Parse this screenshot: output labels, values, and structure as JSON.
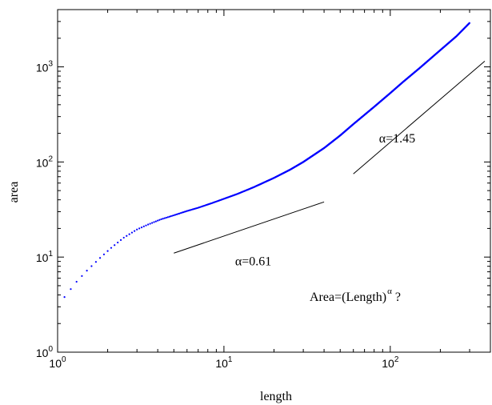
{
  "chart_data": {
    "type": "scatter",
    "xlabel": "length",
    "ylabel": "area",
    "x_scale": "log",
    "y_scale": "log",
    "xlim": [
      1,
      400
    ],
    "ylim": [
      1,
      4000
    ],
    "grid": false,
    "x_ticks": [
      {
        "base": "10",
        "exp": "0",
        "value": 1
      },
      {
        "base": "10",
        "exp": "1",
        "value": 10
      },
      {
        "base": "10",
        "exp": "2",
        "value": 100
      }
    ],
    "y_ticks": [
      {
        "base": "10",
        "exp": "0",
        "value": 1
      },
      {
        "base": "10",
        "exp": "1",
        "value": 10
      },
      {
        "base": "10",
        "exp": "2",
        "value": 100
      },
      {
        "base": "10",
        "exp": "3",
        "value": 1000
      }
    ],
    "series": [
      {
        "color": "#0000ff",
        "x": [
          1.1,
          1.3,
          1.5,
          1.8,
          2.1,
          2.5,
          3.0,
          3.5,
          4.2,
          5.0,
          6.0,
          7.0,
          8.5,
          10,
          12,
          15,
          20,
          25,
          30,
          40,
          50,
          60,
          80,
          100,
          120,
          150,
          200,
          250,
          300
        ],
        "y": [
          3.8,
          5.5,
          7.2,
          9.8,
          12.5,
          16.0,
          19.5,
          22.0,
          25.0,
          27.5,
          30.5,
          33.0,
          37.0,
          41.0,
          46.0,
          54.0,
          68.0,
          83.0,
          100.0,
          140.0,
          190.0,
          250.0,
          380.0,
          530.0,
          700.0,
          970.0,
          1500.0,
          2100.0,
          2900.0
        ]
      }
    ],
    "reference_lines": [
      {
        "label": "α=0.61",
        "x": [
          5,
          40
        ],
        "y": [
          11,
          38
        ]
      },
      {
        "label": "α=1.45",
        "x": [
          60,
          370
        ],
        "y": [
          75,
          1150
        ]
      }
    ],
    "annotation": {
      "base": "Area=(Length)",
      "sup": "α",
      "suffix": " ?"
    }
  }
}
